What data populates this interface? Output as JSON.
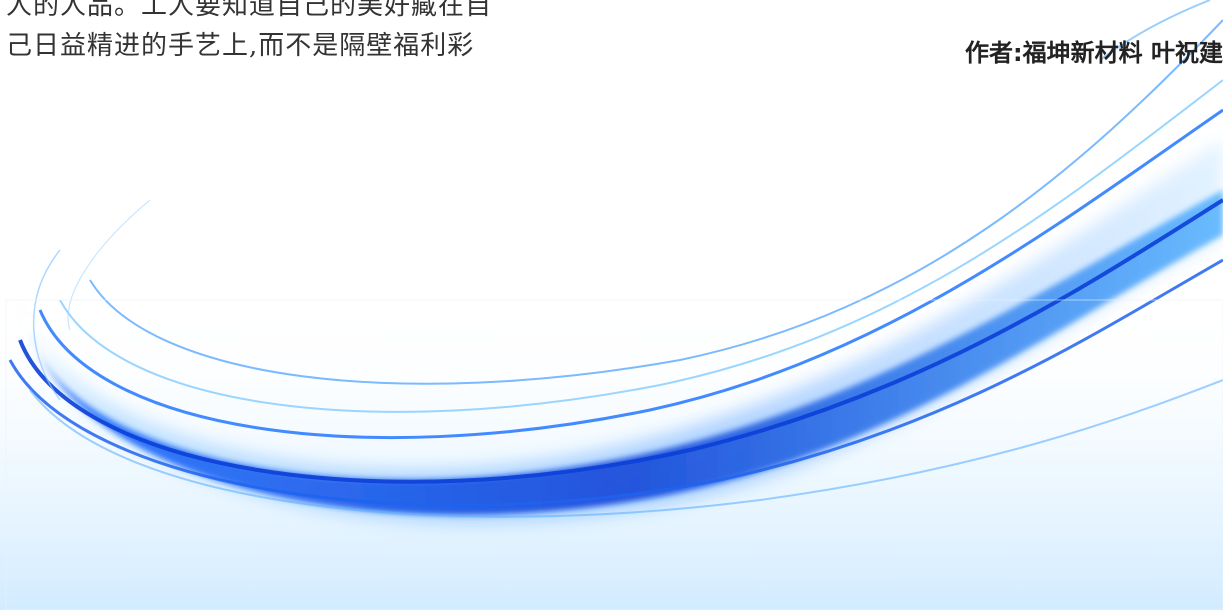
{
  "text_block": {
    "line_1": "人的人品。工人要知道自己的美好藏在自",
    "line_2": "己日益精进的手艺上,而不是隔壁福利彩"
  },
  "author": {
    "label": "作者:福坤新材料 叶祝建"
  },
  "colors": {
    "background": "#ffffff",
    "wave_dark": "#0a3fd6",
    "wave_mid": "#2a86ff",
    "wave_light": "#bfe3ff",
    "text": "#333333"
  }
}
